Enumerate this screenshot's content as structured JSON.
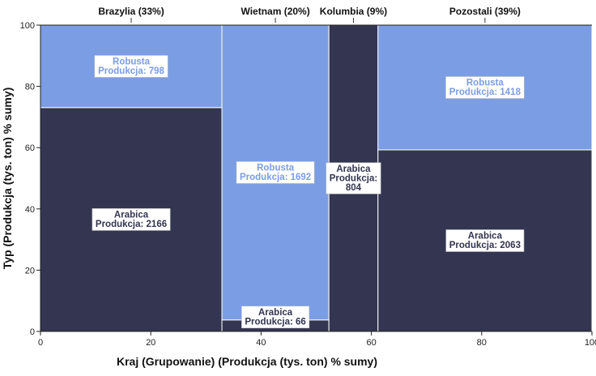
{
  "chart_data": {
    "type": "mosaic",
    "xlabel": "Kraj (Grupowanie) (Produkcja (tys. ton) % sumy)",
    "ylabel": "Typ (Produkcja (tys. ton) % sumy)",
    "xlim": [
      0,
      100
    ],
    "ylim": [
      0,
      100
    ],
    "xticks": [
      0,
      20,
      40,
      60,
      80,
      100
    ],
    "yticks": [
      0,
      20,
      40,
      60,
      80,
      100
    ],
    "colors": {
      "Arabica": "#333551",
      "Robusta": "#7b9de3"
    },
    "value_label_prefix": "Produkcja:",
    "columns": [
      {
        "top_label": "Brazylia (33%)",
        "x0": 0.0,
        "x1": 32.9,
        "segments": [
          {
            "type": "Arabica",
            "value": 2166
          },
          {
            "type": "Robusta",
            "value": 798
          }
        ]
      },
      {
        "top_label": "Wietnam (20%)",
        "x0": 32.9,
        "x1": 52.3,
        "segments": [
          {
            "type": "Arabica",
            "value": 66
          },
          {
            "type": "Robusta",
            "value": 1692
          }
        ]
      },
      {
        "top_label": "Kolumbia (9%)",
        "x0": 52.3,
        "x1": 61.2,
        "segments": [
          {
            "type": "Arabica",
            "value": 804
          }
        ]
      },
      {
        "top_label": "Pozostali (39%)",
        "x0": 61.2,
        "x1": 100.0,
        "segments": [
          {
            "type": "Arabica",
            "value": 2063
          },
          {
            "type": "Robusta",
            "value": 1418
          }
        ]
      }
    ]
  }
}
